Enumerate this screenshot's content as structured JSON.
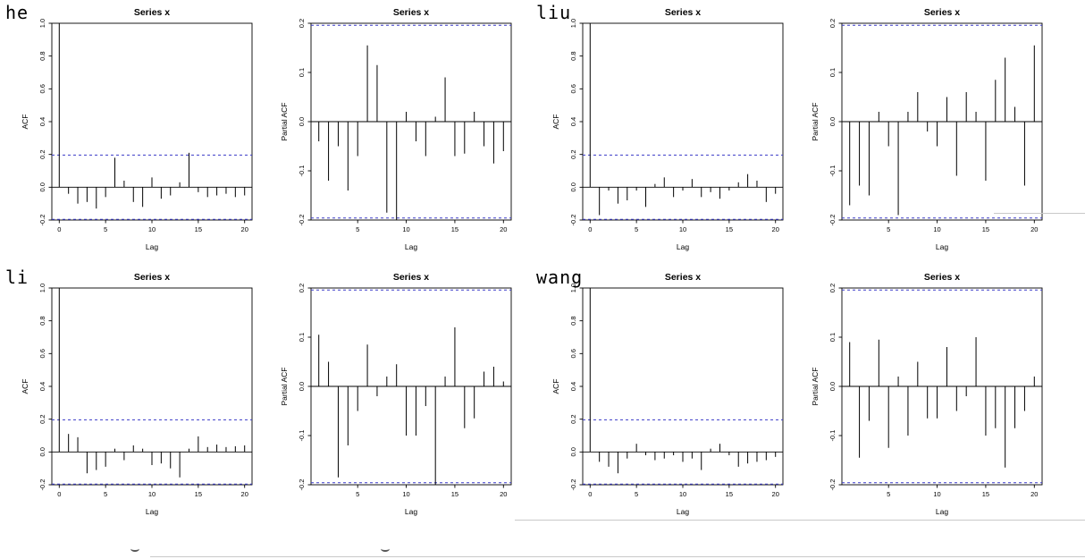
{
  "panels": [
    {
      "name": "he"
    },
    {
      "name": "liu"
    },
    {
      "name": "li"
    },
    {
      "name": "wang"
    }
  ],
  "colors": {
    "bar": "#000000",
    "axis": "#000000",
    "conf_band": "#3a3ac8",
    "grid_line": "#c9c9c9"
  },
  "chart_data": [
    {
      "panel": "he",
      "kind": "acf",
      "type": "bar",
      "title": "Series x",
      "xlabel": "Lag",
      "ylabel": "ACF",
      "ylim": [
        -0.2,
        1.0
      ],
      "xlim": [
        -0.8,
        20.8
      ],
      "yticks": [
        -0.2,
        0.0,
        0.2,
        0.4,
        0.6,
        0.8,
        1.0
      ],
      "xticks": [
        0,
        5,
        10,
        15,
        20
      ],
      "conf_band": 0.196,
      "grid": false,
      "box": true,
      "lags": [
        0,
        1,
        2,
        3,
        4,
        5,
        6,
        7,
        8,
        9,
        10,
        11,
        12,
        13,
        14,
        15,
        16,
        17,
        18,
        19,
        20
      ],
      "values": [
        1.0,
        -0.04,
        -0.1,
        -0.09,
        -0.13,
        -0.06,
        0.18,
        0.04,
        -0.09,
        -0.12,
        0.06,
        -0.07,
        -0.05,
        0.03,
        0.21,
        -0.03,
        -0.06,
        -0.05,
        -0.04,
        -0.06,
        -0.05
      ]
    },
    {
      "panel": "he",
      "kind": "pacf",
      "type": "bar",
      "title": "Series x",
      "xlabel": "Lag",
      "ylabel": "Partial ACF",
      "ylim": [
        -0.2,
        0.2
      ],
      "xlim": [
        0.2,
        20.8
      ],
      "yticks": [
        -0.2,
        -0.1,
        0.0,
        0.1,
        0.2
      ],
      "xticks": [
        5,
        10,
        15,
        20
      ],
      "conf_band": 0.196,
      "grid": false,
      "box": true,
      "lags": [
        1,
        2,
        3,
        4,
        5,
        6,
        7,
        8,
        9,
        10,
        11,
        12,
        13,
        14,
        15,
        16,
        17,
        18,
        19,
        20
      ],
      "values": [
        -0.04,
        -0.12,
        -0.05,
        -0.14,
        -0.07,
        0.155,
        0.115,
        -0.185,
        -0.22,
        0.02,
        -0.04,
        -0.07,
        0.01,
        0.09,
        -0.07,
        -0.065,
        0.02,
        -0.05,
        -0.085,
        -0.06
      ]
    },
    {
      "panel": "liu",
      "kind": "acf",
      "type": "bar",
      "title": "Series x",
      "xlabel": "Lag",
      "ylabel": "ACF",
      "ylim": [
        -0.2,
        1.0
      ],
      "xlim": [
        -0.8,
        20.8
      ],
      "yticks": [
        -0.2,
        0.0,
        0.2,
        0.4,
        0.6,
        0.8,
        1.0
      ],
      "xticks": [
        0,
        5,
        10,
        15,
        20
      ],
      "conf_band": 0.196,
      "grid": false,
      "box": true,
      "lags": [
        0,
        1,
        2,
        3,
        4,
        5,
        6,
        7,
        8,
        9,
        10,
        11,
        12,
        13,
        14,
        15,
        16,
        17,
        18,
        19,
        20
      ],
      "values": [
        1.0,
        -0.17,
        -0.02,
        -0.1,
        -0.08,
        -0.02,
        -0.12,
        0.02,
        0.06,
        -0.06,
        -0.02,
        0.05,
        -0.06,
        -0.03,
        -0.07,
        -0.02,
        0.03,
        0.08,
        0.04,
        -0.09,
        -0.04
      ]
    },
    {
      "panel": "liu",
      "kind": "pacf",
      "type": "bar",
      "title": "Series x",
      "xlabel": "Lag",
      "ylabel": "Partial ACF",
      "ylim": [
        -0.2,
        0.2
      ],
      "xlim": [
        0.2,
        20.8
      ],
      "yticks": [
        -0.2,
        -0.1,
        0.0,
        0.1,
        0.2
      ],
      "xticks": [
        5,
        10,
        15,
        20
      ],
      "conf_band": 0.196,
      "grid": false,
      "box": true,
      "lags": [
        1,
        2,
        3,
        4,
        5,
        6,
        7,
        8,
        9,
        10,
        11,
        12,
        13,
        14,
        15,
        16,
        17,
        18,
        19,
        20
      ],
      "values": [
        -0.17,
        -0.13,
        -0.15,
        0.02,
        -0.05,
        -0.19,
        0.02,
        0.06,
        -0.02,
        -0.05,
        0.05,
        -0.11,
        0.06,
        0.02,
        -0.12,
        0.085,
        0.13,
        0.03,
        -0.13,
        0.155
      ]
    },
    {
      "panel": "li",
      "kind": "acf",
      "type": "bar",
      "title": "Series x",
      "xlabel": "Lag",
      "ylabel": "ACF",
      "ylim": [
        -0.2,
        1.0
      ],
      "xlim": [
        -0.8,
        20.8
      ],
      "yticks": [
        -0.2,
        0.0,
        0.2,
        0.4,
        0.6,
        0.8,
        1.0
      ],
      "xticks": [
        0,
        5,
        10,
        15,
        20
      ],
      "conf_band": 0.196,
      "grid": false,
      "box": true,
      "lags": [
        0,
        1,
        2,
        3,
        4,
        5,
        6,
        7,
        8,
        9,
        10,
        11,
        12,
        13,
        14,
        15,
        16,
        17,
        18,
        19,
        20
      ],
      "values": [
        1.0,
        0.11,
        0.09,
        -0.13,
        -0.11,
        -0.09,
        0.02,
        -0.05,
        0.04,
        0.02,
        -0.08,
        -0.07,
        -0.1,
        -0.155,
        0.02,
        0.095,
        0.03,
        0.045,
        0.03,
        0.035,
        0.04
      ]
    },
    {
      "panel": "li",
      "kind": "pacf",
      "type": "bar",
      "title": "Series x",
      "xlabel": "Lag",
      "ylabel": "Partial ACF",
      "ylim": [
        -0.2,
        0.2
      ],
      "xlim": [
        0.2,
        20.8
      ],
      "yticks": [
        -0.2,
        -0.1,
        0.0,
        0.1,
        0.2
      ],
      "xticks": [
        5,
        10,
        15,
        20
      ],
      "conf_band": 0.196,
      "grid": false,
      "box": true,
      "lags": [
        1,
        2,
        3,
        4,
        5,
        6,
        7,
        8,
        9,
        10,
        11,
        12,
        13,
        14,
        15,
        16,
        17,
        18,
        19,
        20
      ],
      "values": [
        0.105,
        0.05,
        -0.185,
        -0.12,
        -0.05,
        0.085,
        -0.02,
        0.02,
        0.045,
        -0.1,
        -0.1,
        -0.04,
        -0.22,
        0.02,
        0.12,
        -0.085,
        -0.065,
        0.03,
        0.04,
        0.01
      ]
    },
    {
      "panel": "wang",
      "kind": "acf",
      "type": "bar",
      "title": "Series x",
      "xlabel": "Lag",
      "ylabel": "ACF",
      "ylim": [
        -0.2,
        1.0
      ],
      "xlim": [
        -0.8,
        20.8
      ],
      "yticks": [
        -0.2,
        0.0,
        0.2,
        0.4,
        0.6,
        0.8,
        1.0
      ],
      "xticks": [
        0,
        5,
        10,
        15,
        20
      ],
      "conf_band": 0.196,
      "grid": false,
      "box": true,
      "lags": [
        0,
        1,
        2,
        3,
        4,
        5,
        6,
        7,
        8,
        9,
        10,
        11,
        12,
        13,
        14,
        15,
        16,
        17,
        18,
        19,
        20
      ],
      "values": [
        1.0,
        -0.06,
        -0.09,
        -0.13,
        -0.04,
        0.05,
        -0.02,
        -0.05,
        -0.04,
        -0.02,
        -0.06,
        -0.04,
        -0.11,
        0.02,
        0.05,
        -0.02,
        -0.09,
        -0.07,
        -0.06,
        -0.05,
        -0.03
      ]
    },
    {
      "panel": "wang",
      "kind": "pacf",
      "type": "bar",
      "title": "Series x",
      "xlabel": "Lag",
      "ylabel": "Partial ACF",
      "ylim": [
        -0.2,
        0.2
      ],
      "xlim": [
        0.2,
        20.8
      ],
      "yticks": [
        -0.2,
        -0.1,
        0.0,
        0.1,
        0.2
      ],
      "xticks": [
        5,
        10,
        15,
        20
      ],
      "conf_band": 0.196,
      "grid": false,
      "box": true,
      "lags": [
        1,
        2,
        3,
        4,
        5,
        6,
        7,
        8,
        9,
        10,
        11,
        12,
        13,
        14,
        15,
        16,
        17,
        18,
        19,
        20
      ],
      "values": [
        0.09,
        -0.145,
        -0.07,
        0.095,
        -0.125,
        0.02,
        -0.1,
        0.05,
        -0.065,
        -0.065,
        0.08,
        -0.05,
        -0.02,
        0.1,
        -0.1,
        -0.085,
        -0.165,
        -0.085,
        -0.05,
        0.02
      ]
    }
  ]
}
